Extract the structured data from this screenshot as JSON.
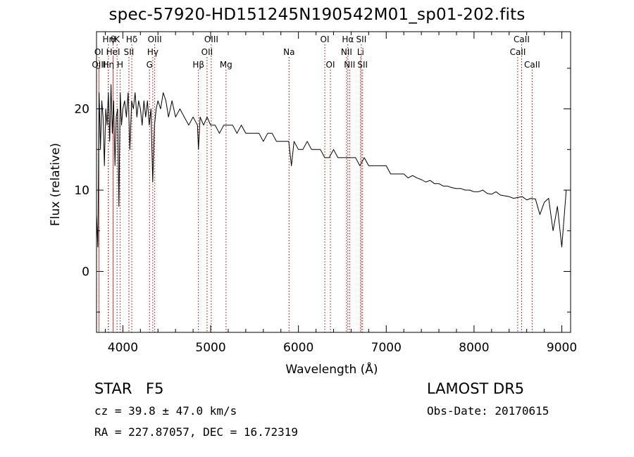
{
  "chart_data": {
    "type": "line",
    "title": "spec-57920-HD151245N190542M01_sp01-202.fits",
    "xlabel": "Wavelength (Å)",
    "ylabel": "Flux (relative)",
    "xlim": [
      3700,
      9100
    ],
    "ylim": [
      -7.5,
      29.5
    ],
    "xticks": [
      4000,
      5000,
      6000,
      7000,
      8000,
      9000
    ],
    "yticks": [
      0,
      10,
      20
    ],
    "grid": false,
    "legend": "none",
    "series": [
      {
        "x": [
          3700,
          3715,
          3730,
          3745,
          3760,
          3775,
          3790,
          3805,
          3820,
          3835,
          3850,
          3865,
          3880,
          3895,
          3910,
          3925,
          3940,
          3955,
          3970,
          3985,
          4000,
          4020,
          4040,
          4060,
          4080,
          4100,
          4120,
          4140,
          4160,
          4180,
          4200,
          4220,
          4240,
          4260,
          4280,
          4300,
          4320,
          4340,
          4360,
          4380,
          4400,
          4430,
          4460,
          4490,
          4520,
          4560,
          4600,
          4650,
          4700,
          4750,
          4800,
          4850,
          4861,
          4880,
          4920,
          4960,
          5000,
          5050,
          5100,
          5150,
          5200,
          5250,
          5300,
          5350,
          5400,
          5450,
          5500,
          5550,
          5600,
          5650,
          5700,
          5750,
          5800,
          5850,
          5890,
          5920,
          5950,
          6000,
          6050,
          6100,
          6150,
          6200,
          6250,
          6300,
          6350,
          6400,
          6450,
          6500,
          6563,
          6600,
          6650,
          6700,
          6750,
          6800,
          6850,
          6900,
          6950,
          7000,
          7050,
          7100,
          7150,
          7200,
          7250,
          7300,
          7350,
          7400,
          7450,
          7500,
          7550,
          7600,
          7650,
          7700,
          7750,
          7800,
          7850,
          7900,
          7950,
          8000,
          8050,
          8100,
          8150,
          8200,
          8250,
          8300,
          8350,
          8400,
          8450,
          8500,
          8550,
          8600,
          8650,
          8700,
          8750,
          8800,
          8850,
          8900,
          8950,
          9000,
          9050
        ],
        "y": [
          7,
          3,
          22,
          15,
          21,
          19,
          13,
          20,
          18,
          22,
          16,
          23,
          17,
          21,
          13,
          19,
          20,
          8,
          22,
          18,
          20,
          21,
          19,
          22,
          15,
          21,
          20,
          22,
          19,
          21,
          20,
          18,
          21,
          19,
          21,
          18,
          20,
          11,
          18,
          20,
          21,
          20,
          22,
          21,
          19,
          21,
          19,
          20,
          19,
          18,
          19,
          18,
          15,
          19,
          18,
          19,
          18,
          18,
          17,
          18,
          18,
          18,
          17,
          18,
          17,
          17,
          17,
          17,
          16,
          17,
          17,
          16,
          16,
          16,
          16,
          13,
          16,
          15,
          15,
          16,
          15,
          15,
          15,
          14,
          14,
          15,
          14,
          14,
          14,
          14,
          14,
          13,
          14,
          13,
          13,
          13,
          13,
          13,
          12,
          12,
          12,
          12,
          11.5,
          11.8,
          11.5,
          11.3,
          11,
          11.2,
          10.8,
          10.8,
          10.5,
          10.5,
          10.3,
          10.2,
          10.2,
          10,
          10,
          9.8,
          9.8,
          10,
          9.6,
          9.5,
          9.8,
          9.4,
          9.3,
          9.2,
          9,
          9.1,
          9.2,
          8.8,
          9,
          8.9,
          7,
          8.5,
          9,
          5,
          8,
          3,
          10
        ]
      }
    ],
    "lines": [
      {
        "name": "Hη",
        "x": 3835,
        "row": 0
      },
      {
        "name": "θ",
        "x": 3889,
        "row": 0
      },
      {
        "name": "K",
        "x": 3934,
        "row": 0
      },
      {
        "name": "Hδ",
        "x": 4102,
        "row": 0
      },
      {
        "name": "OIII",
        "x": 4363,
        "row": 0
      },
      {
        "name": "OIII",
        "x": 5007,
        "row": 0
      },
      {
        "name": "OI",
        "x": 6300,
        "row": 0
      },
      {
        "name": "Hα",
        "x": 6563,
        "row": 0
      },
      {
        "name": "SII",
        "x": 6716,
        "row": 0
      },
      {
        "name": "CaII",
        "x": 8542,
        "row": 0
      },
      {
        "name": "OI",
        "x": 3727,
        "row": 1
      },
      {
        "name": "HeI",
        "x": 3889,
        "row": 1
      },
      {
        "name": "SII",
        "x": 4069,
        "row": 1
      },
      {
        "name": "Hγ",
        "x": 4341,
        "row": 1
      },
      {
        "name": "OII",
        "x": 4959,
        "row": 1
      },
      {
        "name": "Na",
        "x": 5893,
        "row": 1
      },
      {
        "name": "NII",
        "x": 6548,
        "row": 1
      },
      {
        "name": "Li",
        "x": 6708,
        "row": 1
      },
      {
        "name": "CaII",
        "x": 8498,
        "row": 1
      },
      {
        "name": "OIII",
        "x": 3727,
        "row": 2
      },
      {
        "name": "Hη",
        "x": 3835,
        "row": 2
      },
      {
        "name": "H",
        "x": 3969,
        "row": 2
      },
      {
        "name": "G",
        "x": 4304,
        "row": 2
      },
      {
        "name": "Hβ",
        "x": 4861,
        "row": 2
      },
      {
        "name": "Mg",
        "x": 5175,
        "row": 2
      },
      {
        "name": "OI",
        "x": 6364,
        "row": 2
      },
      {
        "name": "NII",
        "x": 6583,
        "row": 2
      },
      {
        "name": "SII",
        "x": 6731,
        "row": 2
      },
      {
        "name": "CaII",
        "x": 8662,
        "row": 2
      }
    ]
  },
  "info": {
    "obj_type": "STAR",
    "sub_class": "F5",
    "survey": "LAMOST DR5",
    "cz": "cz = 39.8 ± 47.0 km/s",
    "obs_date": "Obs-Date: 20170615",
    "radec": "RA = 227.87057, DEC =  16.72319"
  }
}
